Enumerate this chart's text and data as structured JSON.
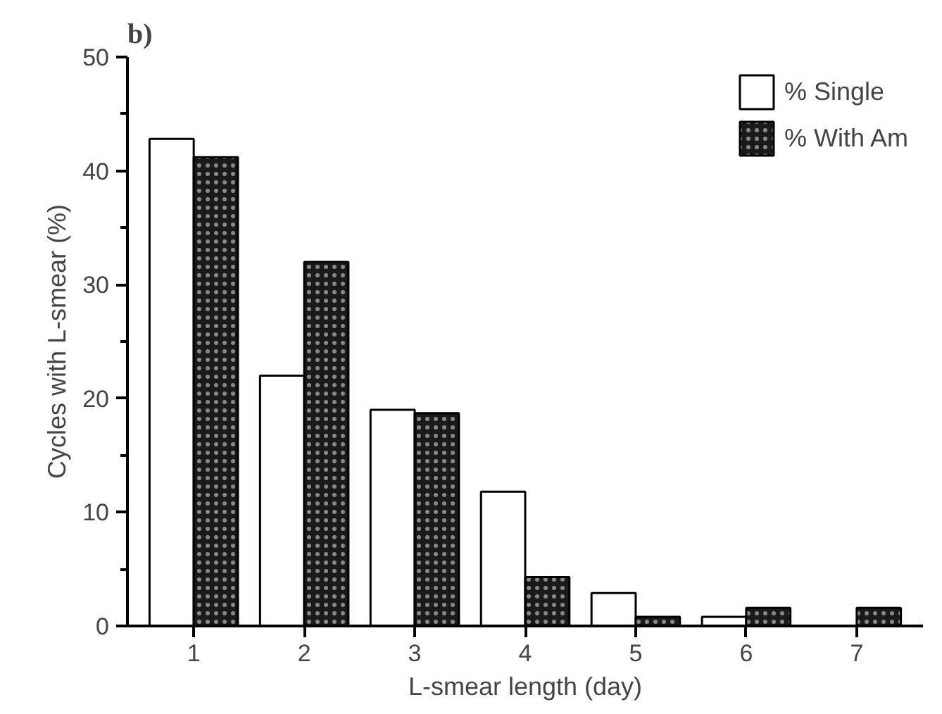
{
  "chart_data": {
    "type": "bar",
    "title": "b)",
    "xlabel": "L-smear length (day)",
    "ylabel": "Cycles with L-smear (%)",
    "categories": [
      "1",
      "2",
      "3",
      "4",
      "5",
      "6",
      "7"
    ],
    "series": [
      {
        "name": "% Single",
        "color": "#ffffff",
        "values": [
          42.8,
          22,
          19,
          11.8,
          2.9,
          0.8,
          0
        ]
      },
      {
        "name": "% With Am",
        "color": "#1a1a1a",
        "values": [
          41.2,
          32,
          18.7,
          4.3,
          0.8,
          1.6,
          1.6
        ]
      }
    ],
    "ylim": [
      0,
      50
    ],
    "yticks": [
      0,
      10,
      20,
      30,
      40,
      50
    ],
    "grid": false,
    "legend": "top right"
  }
}
